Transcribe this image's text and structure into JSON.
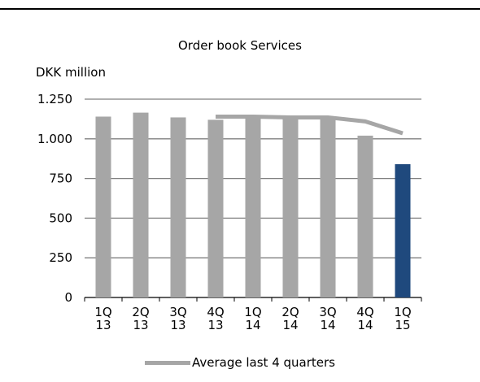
{
  "chart_data": {
    "type": "bar",
    "title": "Order book Services",
    "ylabel": "DKK million",
    "xlabel": "",
    "ylim": [
      0,
      1250
    ],
    "yticks": [
      0,
      250,
      500,
      750,
      1000,
      1250
    ],
    "ytick_labels": [
      "0",
      "250",
      "500",
      "750",
      "1.000",
      "1.250"
    ],
    "categories": [
      [
        "1Q",
        "13"
      ],
      [
        "2Q",
        "13"
      ],
      [
        "3Q",
        "13"
      ],
      [
        "4Q",
        "13"
      ],
      [
        "1Q",
        "14"
      ],
      [
        "2Q",
        "14"
      ],
      [
        "3Q",
        "14"
      ],
      [
        "4Q",
        "14"
      ],
      [
        "1Q",
        "15"
      ]
    ],
    "values": [
      1140,
      1165,
      1135,
      1120,
      1135,
      1135,
      1140,
      1020,
      840
    ],
    "bar_colors": [
      "#a6a6a6",
      "#a6a6a6",
      "#a6a6a6",
      "#a6a6a6",
      "#a6a6a6",
      "#a6a6a6",
      "#a6a6a6",
      "#a6a6a6",
      "#1f497d"
    ],
    "grid": true,
    "legend_position": "bottom",
    "lines": [
      {
        "name": "Average last 4 quarters",
        "color": "#a6a6a6",
        "values": [
          null,
          null,
          null,
          1140,
          1140,
          1135,
          1135,
          1110,
          1035
        ]
      }
    ]
  }
}
